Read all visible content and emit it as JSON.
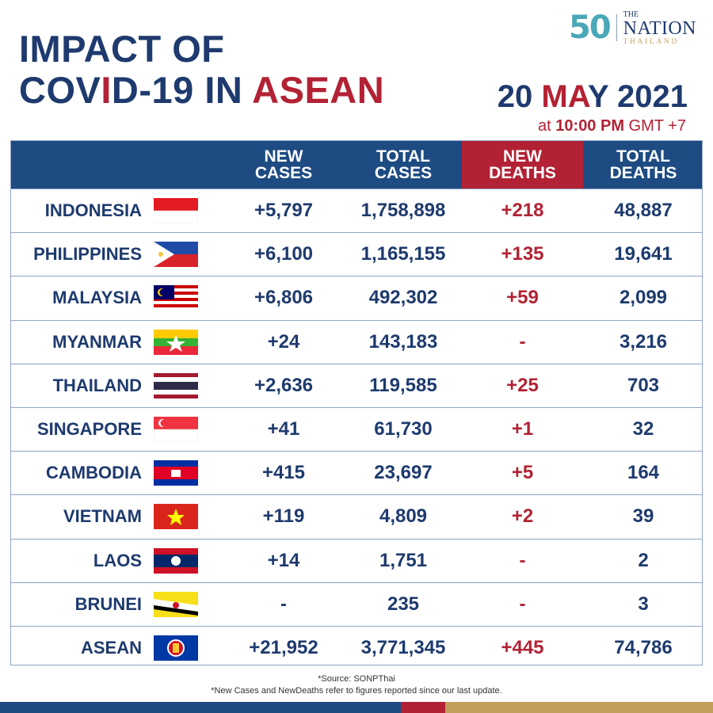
{
  "title": {
    "line1": "IMPACT OF",
    "line2a": "COV",
    "line2b": "I",
    "line2c": "D-19 IN ",
    "line2d": "ASEAN"
  },
  "logo": {
    "fifty": "50",
    "the": "THE",
    "nation": "NATION",
    "thailand": "THAILAND"
  },
  "date": {
    "a": "20 ",
    "b": "MA",
    "c": "Y 2021"
  },
  "time": {
    "at": "at ",
    "clock": "10:00 PM",
    "tz": " GMT +7"
  },
  "headers": [
    {
      "l1": "NEW",
      "l2": "CASES"
    },
    {
      "l1": "TOTAL",
      "l2": "CASES"
    },
    {
      "l1": "NEW",
      "l2": "DEATHS"
    },
    {
      "l1": "TOTAL",
      "l2": "DEATHS"
    }
  ],
  "rows": [
    {
      "country": "INDONESIA",
      "flag": "indonesia-flag",
      "new_cases": "+5,797",
      "total_cases": "1,758,898",
      "new_deaths": "+218",
      "total_deaths": "48,887"
    },
    {
      "country": "PHILIPPINES",
      "flag": "philippines-flag",
      "new_cases": "+6,100",
      "total_cases": "1,165,155",
      "new_deaths": "+135",
      "total_deaths": "19,641"
    },
    {
      "country": "MALAYSIA",
      "flag": "malaysia-flag",
      "new_cases": "+6,806",
      "total_cases": "492,302",
      "new_deaths": "+59",
      "total_deaths": "2,099"
    },
    {
      "country": "MYANMAR",
      "flag": "myanmar-flag",
      "new_cases": "+24",
      "total_cases": "143,183",
      "new_deaths": "-",
      "total_deaths": "3,216"
    },
    {
      "country": "THAILAND",
      "flag": "thailand-flag",
      "new_cases": "+2,636",
      "total_cases": "119,585",
      "new_deaths": "+25",
      "total_deaths": "703"
    },
    {
      "country": "SINGAPORE",
      "flag": "singapore-flag",
      "new_cases": "+41",
      "total_cases": "61,730",
      "new_deaths": "+1",
      "total_deaths": "32"
    },
    {
      "country": "CAMBODIA",
      "flag": "cambodia-flag",
      "new_cases": "+415",
      "total_cases": "23,697",
      "new_deaths": "+5",
      "total_deaths": "164"
    },
    {
      "country": "VIETNAM",
      "flag": "vietnam-flag",
      "new_cases": "+119",
      "total_cases": "4,809",
      "new_deaths": "+2",
      "total_deaths": "39"
    },
    {
      "country": "LAOS",
      "flag": "laos-flag",
      "new_cases": "+14",
      "total_cases": "1,751",
      "new_deaths": "-",
      "total_deaths": "2"
    },
    {
      "country": "BRUNEI",
      "flag": "brunei-flag",
      "new_cases": "-",
      "total_cases": "235",
      "new_deaths": "-",
      "total_deaths": "3"
    },
    {
      "country": "ASEAN",
      "flag": "asean-flag",
      "new_cases": "+21,952",
      "total_cases": "3,771,345",
      "new_deaths": "+445",
      "total_deaths": "74,786"
    }
  ],
  "footer": {
    "source": "*Source: SONPThai",
    "note": "*New Cases and NewDeaths refer to figures reported since our last update."
  },
  "colors": {
    "navy": "#1e3a6e",
    "header_blue": "#1d4b82",
    "red": "#b22234",
    "gold": "#c2a05a",
    "grid": "#8fa6c4"
  }
}
